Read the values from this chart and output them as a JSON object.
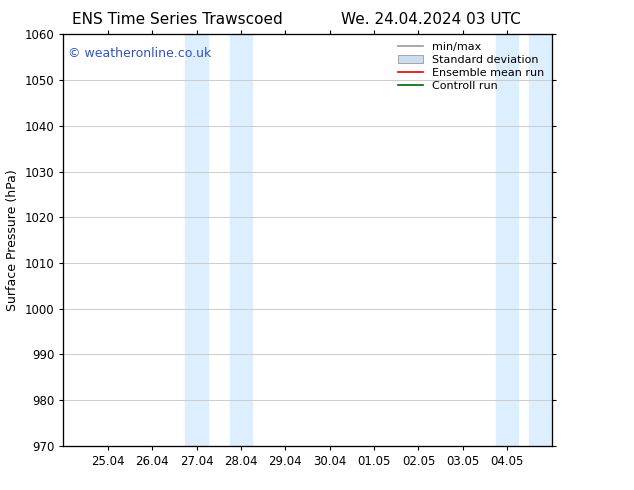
{
  "title_left": "ENS Time Series Trawscoed",
  "title_right": "We. 24.04.2024 03 UTC",
  "ylabel": "Surface Pressure (hPa)",
  "ylim": [
    970,
    1060
  ],
  "yticks": [
    970,
    980,
    990,
    1000,
    1010,
    1020,
    1030,
    1040,
    1050,
    1060
  ],
  "xtick_labels": [
    "25.04",
    "26.04",
    "27.04",
    "28.04",
    "29.04",
    "30.04",
    "01.05",
    "02.05",
    "03.05",
    "04.05"
  ],
  "xtick_positions": [
    1,
    2,
    3,
    4,
    5,
    6,
    7,
    8,
    9,
    10
  ],
  "xlim": [
    0,
    11
  ],
  "shaded_regions": [
    {
      "xstart": 2.75,
      "xend": 3.25
    },
    {
      "xstart": 3.75,
      "xend": 4.25
    },
    {
      "xstart": 9.75,
      "xend": 10.25
    },
    {
      "xstart": 10.5,
      "xend": 11.0
    }
  ],
  "shaded_color": "#ddeeff",
  "background_color": "#ffffff",
  "watermark_text": "© weatheronline.co.uk",
  "watermark_color": "#3355bb",
  "legend_items": [
    {
      "label": "min/max",
      "color": "#999999",
      "lw": 1.2,
      "style": "solid",
      "type": "line"
    },
    {
      "label": "Standard deviation",
      "color": "#ccddef",
      "lw": 8,
      "style": "solid",
      "type": "patch"
    },
    {
      "label": "Ensemble mean run",
      "color": "#dd0000",
      "lw": 1.2,
      "style": "solid",
      "type": "line"
    },
    {
      "label": "Controll run",
      "color": "#006600",
      "lw": 1.2,
      "style": "solid",
      "type": "line"
    }
  ],
  "grid_color": "#cccccc",
  "tick_label_fontsize": 8.5,
  "title_fontsize": 11,
  "ylabel_fontsize": 9,
  "legend_fontsize": 8,
  "watermark_fontsize": 9
}
